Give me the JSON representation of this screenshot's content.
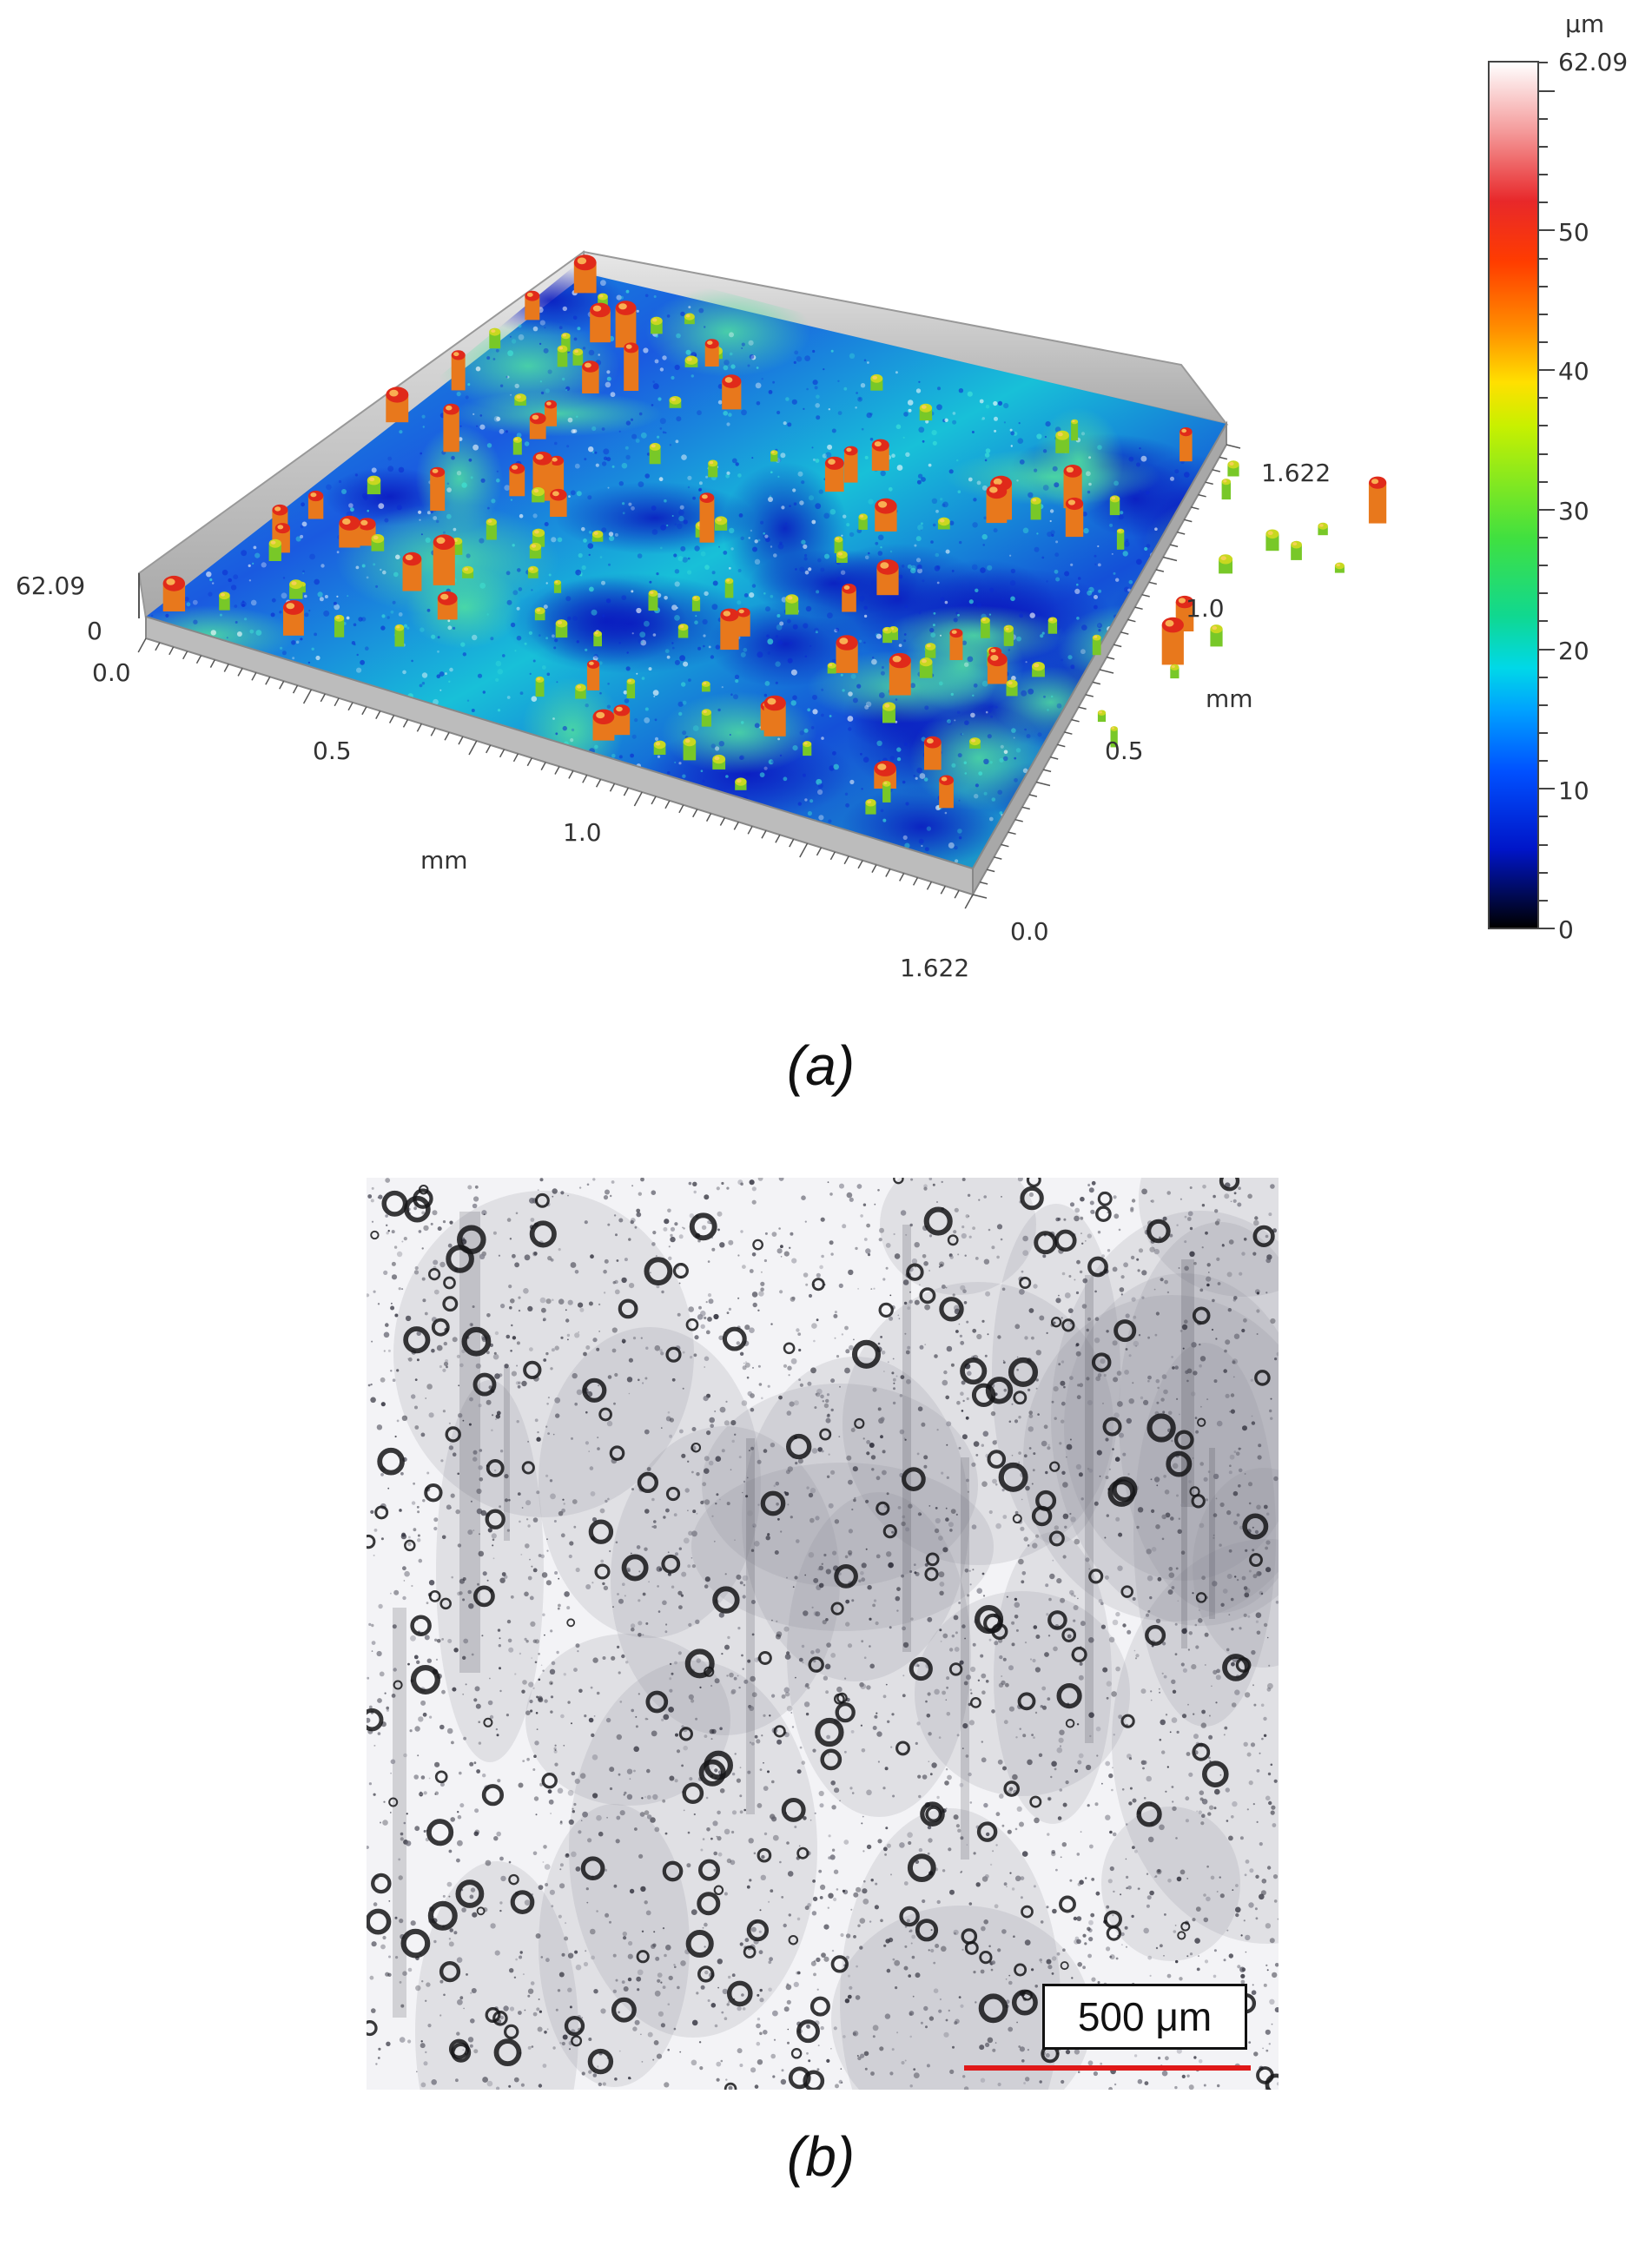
{
  "panel_a": {
    "caption": "(a)",
    "colorbar": {
      "unit": "μm",
      "max_label": "62.09",
      "ticks": [
        "50",
        "40",
        "30",
        "20",
        "10",
        "0"
      ]
    },
    "axes": {
      "z_top": "62.09",
      "z_bottom": "0",
      "x_ticks": [
        "0.0",
        "0.5",
        "1.0",
        "1.622"
      ],
      "x_unit": "mm",
      "y_ticks": [
        "0.0",
        "0.5",
        "1.0",
        "1.622"
      ],
      "y_unit": "mm"
    },
    "colors": {
      "low": "#0015c8",
      "mid": "#00c8e0",
      "high": "#ff3c00",
      "frame": "#c8c8c8"
    }
  },
  "panel_b": {
    "caption": "(b)",
    "scale_bar_label": "500 μm",
    "scale_bar_color": "#e01818"
  }
}
